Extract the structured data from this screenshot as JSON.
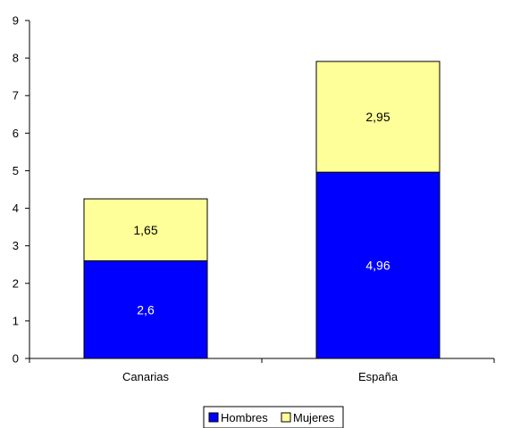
{
  "chart_data": {
    "type": "bar",
    "stacked": true,
    "categories": [
      "Canarias",
      "España"
    ],
    "series": [
      {
        "name": "Hombres",
        "values": [
          2.6,
          4.96
        ],
        "labels": [
          "2,6",
          "4,96"
        ],
        "color": "#0000ff",
        "label_color": "#ffffff"
      },
      {
        "name": "Mujeres",
        "values": [
          1.65,
          2.95
        ],
        "labels": [
          "1,65",
          "2,95"
        ],
        "color": "#ffff99",
        "label_color": "#000000"
      }
    ],
    "ylim": [
      0,
      9
    ],
    "yticks": [
      "0",
      "1",
      "2",
      "3",
      "4",
      "5",
      "6",
      "7",
      "8",
      "9"
    ],
    "grid": false,
    "legend_position": "bottom"
  }
}
